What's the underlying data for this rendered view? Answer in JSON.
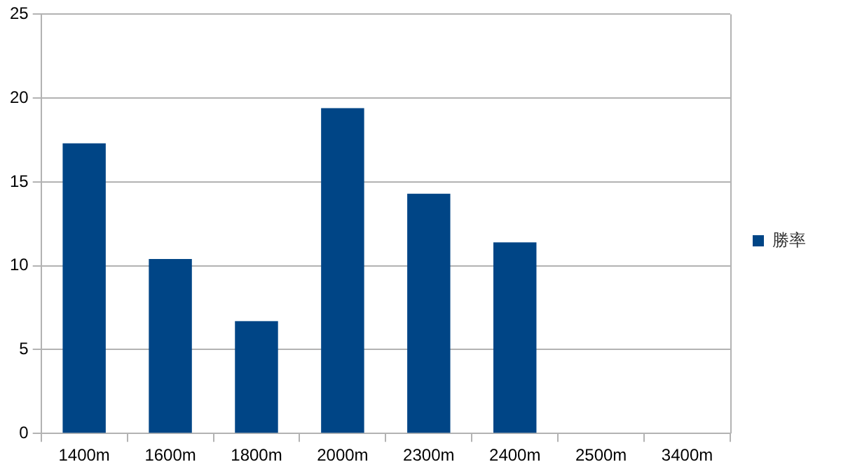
{
  "chart_data": {
    "type": "bar",
    "categories": [
      "1400m",
      "1600m",
      "1800m",
      "2000m",
      "2300m",
      "2400m",
      "2500m",
      "3400m"
    ],
    "series": [
      {
        "name": "勝率",
        "color": "#004586",
        "values": [
          17.3,
          10.4,
          6.7,
          19.4,
          14.3,
          11.4,
          0,
          0
        ]
      }
    ],
    "ylim": [
      0,
      25
    ],
    "yticks": [
      0,
      5,
      10,
      15,
      20,
      25
    ],
    "grid": "y",
    "legend": "right"
  }
}
